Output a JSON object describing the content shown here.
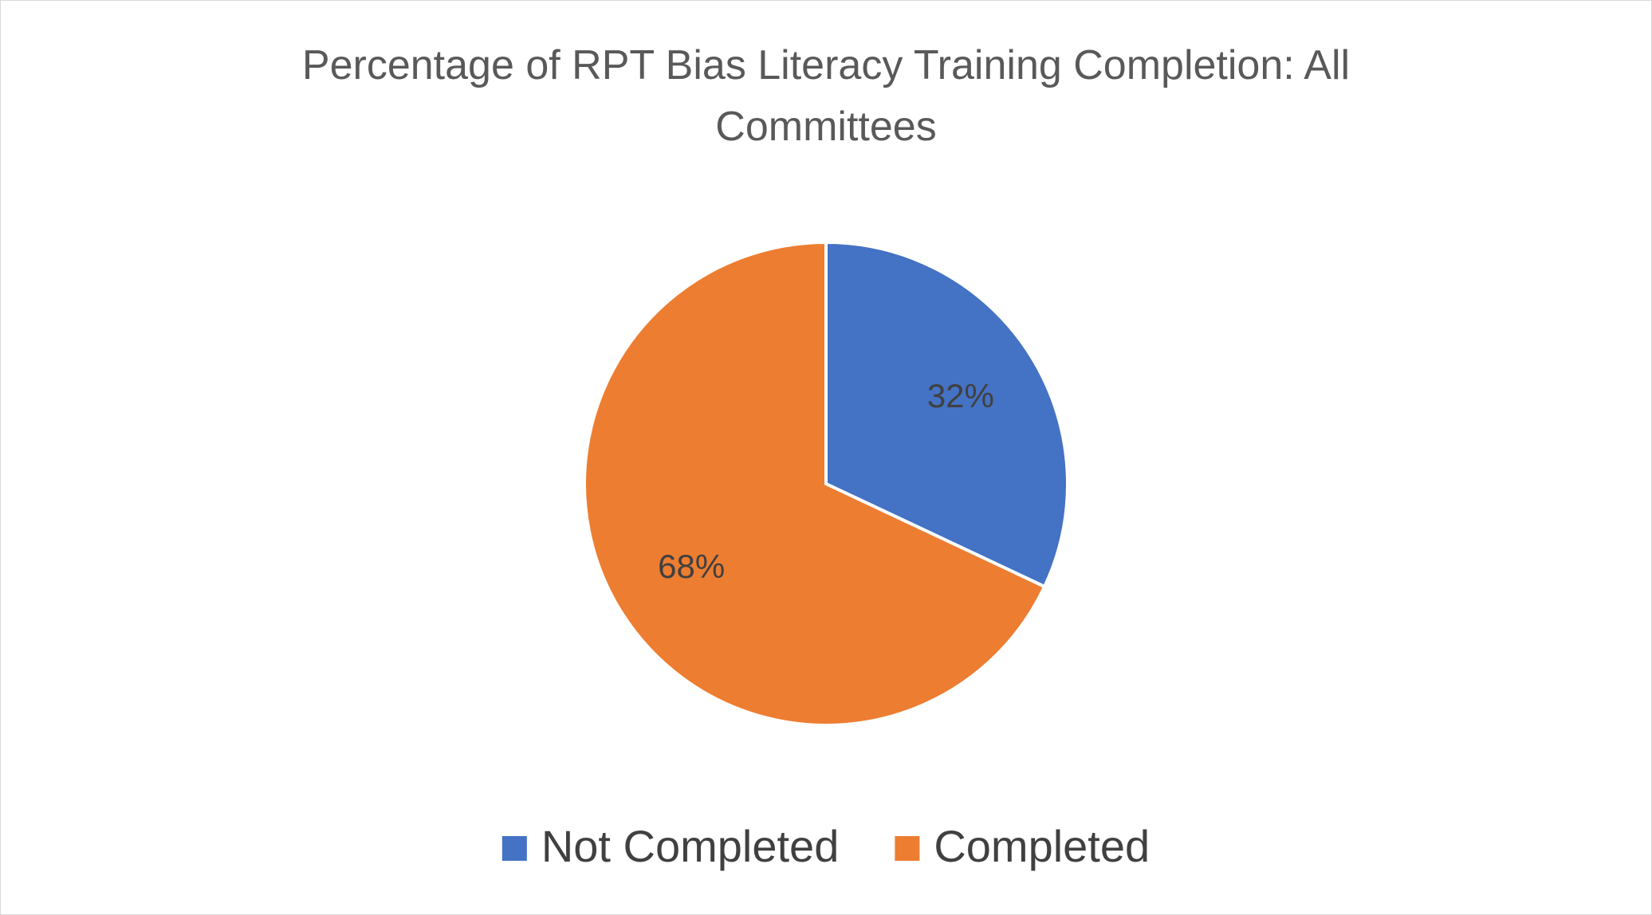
{
  "chart_data": {
    "type": "pie",
    "title": "Percentage of RPT Bias Literacy Training Completion: All Committees",
    "categories": [
      "Not Completed",
      "Completed"
    ],
    "values": [
      32,
      68
    ],
    "value_labels": [
      "32%",
      "68%"
    ],
    "colors": [
      "#4472c4",
      "#ed7d31"
    ],
    "legend": "bottom"
  }
}
